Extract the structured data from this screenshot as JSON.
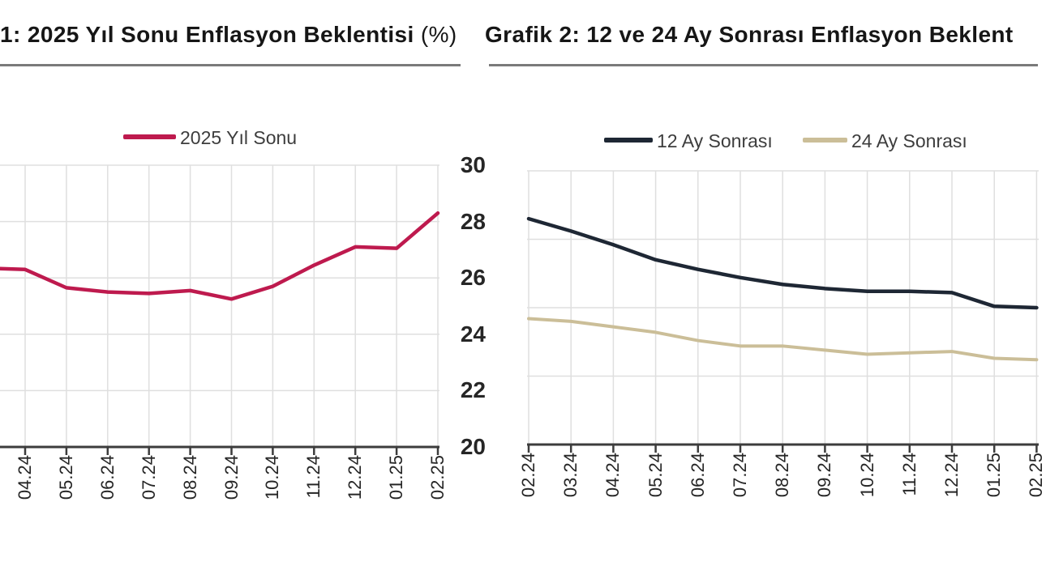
{
  "canvas": {
    "background": "#ffffff"
  },
  "charts": [
    {
      "title": {
        "bold": "1: 2025 Yıl Sonu Enflasyon Beklentisi",
        "regular": " (%)"
      },
      "legend": [
        {
          "label": "2025 Yıl Sonu",
          "color": "#be1a4e"
        }
      ],
      "chart_data": {
        "type": "line",
        "categories": [
          "04.24",
          "05.24",
          "06.24",
          "07.24",
          "08.24",
          "09.24",
          "10.24",
          "11.24",
          "12.24",
          "01.25",
          "02.25"
        ],
        "series": [
          {
            "name": "2025 Yıl Sonu",
            "color": "#be1a4e",
            "values": [
              26.3,
              25.65,
              25.5,
              25.45,
              25.55,
              25.25,
              25.7,
              26.45,
              27.1,
              27.05,
              28.3
            ]
          }
        ],
        "left_edge_entry_value": 26.35,
        "ylim": [
          20,
          30
        ],
        "yticks": [
          20,
          22,
          24,
          26,
          28,
          30
        ],
        "y_tick_labels_visible": false,
        "grid": true,
        "x_tick_rotation": -90,
        "note": "chart cropped at left edge of image; line enters from edge"
      }
    },
    {
      "title": {
        "bold": "Grafik 2: 12 ve 24 Ay Sonrası Enflasyon Beklent",
        "regular": ""
      },
      "legend": [
        {
          "label": "12 Ay Sonrası",
          "color": "#1e2734"
        },
        {
          "label": "24 Ay Sonrası",
          "color": "#cbbe98"
        }
      ],
      "chart_data": {
        "type": "line",
        "categories": [
          "02.24",
          "03.24",
          "04.24",
          "05.24",
          "06.24",
          "07.24",
          "08.24",
          "09.24",
          "10.24",
          "11.24",
          "12.24",
          "01.25",
          "02.25"
        ],
        "series": [
          {
            "name": "12 Ay Sonrası",
            "color": "#1e2734",
            "values": [
              28.25,
              27.8,
              27.3,
              26.75,
              26.4,
              26.1,
              25.85,
              25.7,
              25.6,
              25.6,
              25.55,
              25.05,
              25.0
            ]
          },
          {
            "name": "24 Ay Sonrası",
            "color": "#cbbe98",
            "values": [
              24.6,
              24.5,
              24.3,
              24.1,
              23.8,
              23.6,
              23.6,
              23.45,
              23.3,
              23.35,
              23.4,
              23.15,
              23.1
            ]
          }
        ],
        "ylim": [
          20,
          30
        ],
        "yticks": [
          20,
          22,
          24,
          26,
          28,
          30
        ],
        "y_tick_labels_visible": true,
        "grid": true,
        "x_tick_rotation": -90,
        "note": "chart cropped at right edge of image"
      }
    }
  ],
  "y_axis_labels": [
    "30",
    "28",
    "26",
    "24",
    "22",
    "20"
  ]
}
